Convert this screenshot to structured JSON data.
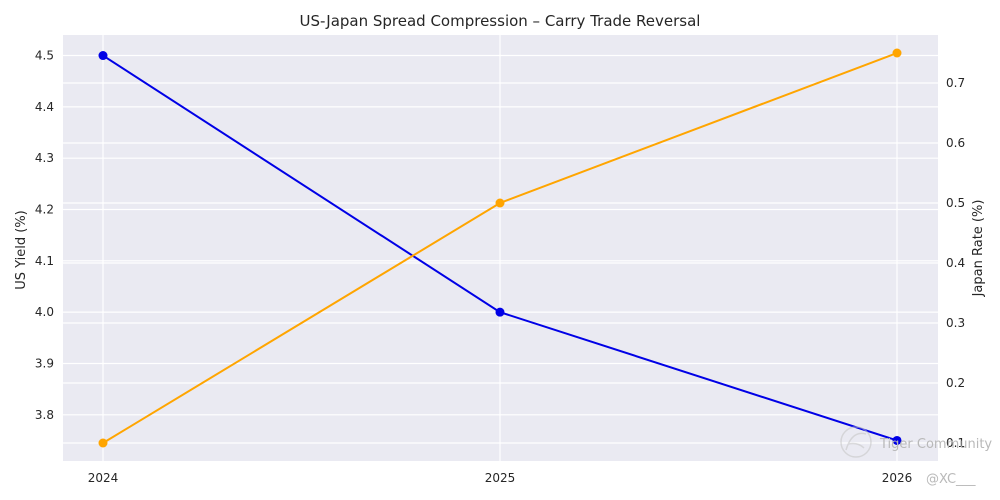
{
  "chart_data": {
    "type": "line",
    "title": "US-Japan Spread Compression – Carry Trade Reversal",
    "x": [
      "2024",
      "2025",
      "2026"
    ],
    "series": [
      {
        "name": "US Yield",
        "axis": "left",
        "color": "#0000e6",
        "values": [
          4.5,
          4.0,
          3.75
        ]
      },
      {
        "name": "Japan Rate",
        "axis": "right",
        "color": "#ffa500",
        "values": [
          0.1,
          0.5,
          0.75
        ]
      }
    ],
    "ylabel_left": "US Yield (%)",
    "ylabel_right": "Japan Rate (%)",
    "ylim_left": [
      3.71,
      4.54
    ],
    "ylim_right": [
      0.07,
      0.78
    ],
    "yticks_left": [
      "3.8",
      "3.9",
      "4.0",
      "4.1",
      "4.2",
      "4.3",
      "4.4",
      "4.5"
    ],
    "yticks_right": [
      "0.1",
      "0.2",
      "0.3",
      "0.4",
      "0.5",
      "0.6",
      "0.7"
    ],
    "grid": true,
    "background": "#eaeaf2"
  },
  "watermark": {
    "text": "Tiger Community",
    "handle": "@XC___"
  }
}
